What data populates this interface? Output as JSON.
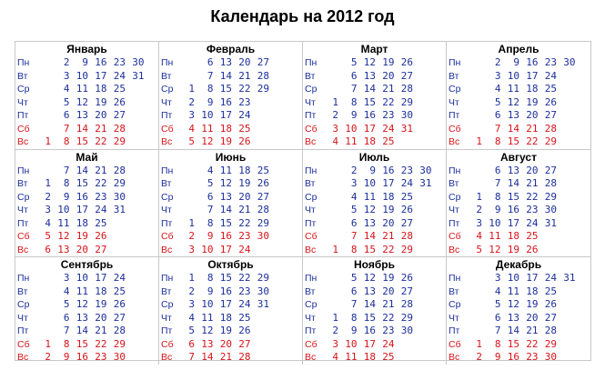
{
  "title": "Календарь на 2012 год",
  "weekdays": [
    "Пн",
    "Вт",
    "Ср",
    "Чт",
    "Пт",
    "Сб",
    "Вс"
  ],
  "colors": {
    "weekday": "#1c2f9b",
    "weekend": "#d7141a",
    "border": "#c8c8c8"
  },
  "months": [
    {
      "name": "Январь",
      "first_col": 0,
      "days": 31
    },
    {
      "name": "Февраль",
      "first_col": 1,
      "days": 29
    },
    {
      "name": "Март",
      "first_col": 0,
      "days": 31
    },
    {
      "name": "Апрель",
      "first_col": 0,
      "days": 30
    },
    {
      "name": "Май",
      "first_col": 0,
      "days": 31
    },
    {
      "name": "Июнь",
      "first_col": 0,
      "days": 30
    },
    {
      "name": "Июль",
      "first_col": 0,
      "days": 31
    },
    {
      "name": "Август",
      "first_col": 0,
      "days": 31
    },
    {
      "name": "Сентябрь",
      "first_col": 0,
      "days": 30
    },
    {
      "name": "Октябрь",
      "first_col": 1,
      "days": 31
    },
    {
      "name": "Ноябрь",
      "first_col": 0,
      "days": 30
    },
    {
      "name": "Декабрь",
      "first_col": 0,
      "days": 31
    }
  ],
  "first_weekday_index": [
    6,
    2,
    3,
    6,
    1,
    4,
    6,
    2,
    5,
    0,
    3,
    5
  ]
}
